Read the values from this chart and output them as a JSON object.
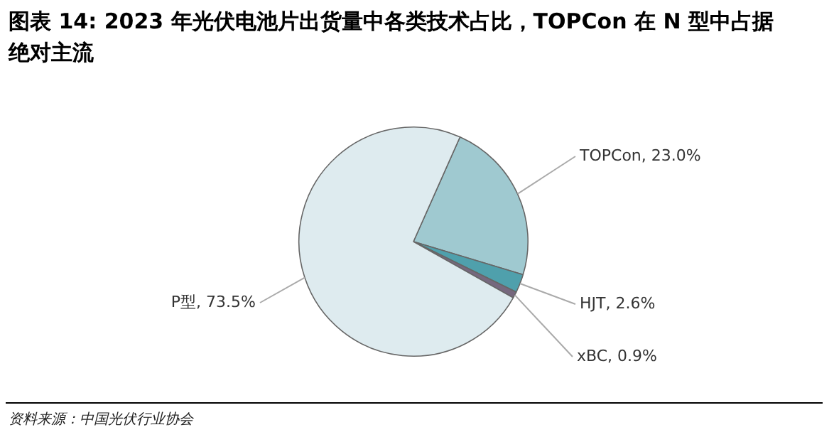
{
  "chart_data": {
    "type": "pie",
    "title": "图表 14: 2023 年光伏电池片出货量中各类技术占比，TOPCon 在 N 型中占据绝对主流",
    "categories": [
      "TOPCon",
      "HJT",
      "xBC",
      "P型"
    ],
    "values": [
      23.0,
      2.6,
      0.9,
      73.5
    ],
    "value_labels": [
      "23.0%",
      "2.6%",
      "0.9%",
      "73.5%"
    ],
    "colors": [
      "#9fc9d0",
      "#4fa0ac",
      "#76687e",
      "#deebef"
    ],
    "annotations": [
      "资料来源：中国光伏行业协会"
    ]
  }
}
